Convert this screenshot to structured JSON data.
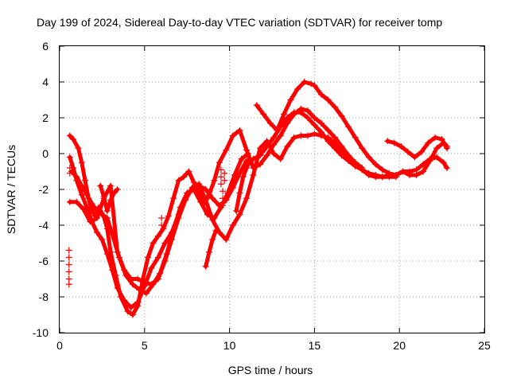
{
  "chart_data": {
    "type": "scatter",
    "title": "Day 199 of 2024, Sidereal Day-to-day VTEC variation (SDTVAR) for receiver tomp",
    "xlabel": "GPS time / hours",
    "ylabel": "SDTVAR / TECUs",
    "xlim": [
      0,
      25
    ],
    "ylim": [
      -10,
      6
    ],
    "xticks": [
      0,
      5,
      10,
      15,
      20,
      25
    ],
    "yticks": [
      -10,
      -8,
      -6,
      -4,
      -2,
      0,
      2,
      4,
      6
    ],
    "grid": true,
    "marker": "+",
    "color": "#ff0000",
    "series": [
      {
        "x": [
          0.6,
          0.8,
          1.1,
          1.3,
          1.5,
          1.7,
          1.9,
          2.1,
          2.3,
          2.6,
          2.8,
          3.0,
          3.3,
          3.6,
          4.0,
          4.3,
          4.6,
          4.9,
          5.2,
          5.5,
          5.8,
          6.1,
          6.4,
          6.7,
          7.0,
          7.3,
          7.6,
          7.9,
          8.2,
          8.5,
          8.8,
          9.1,
          9.4,
          9.8,
          10.2,
          10.6,
          11.0,
          11.4,
          11.8,
          12.2,
          12.6,
          13.0,
          13.4,
          13.8,
          14.2,
          14.6,
          15.0,
          15.4,
          15.8,
          16.2,
          16.6,
          17.0,
          17.4,
          17.8,
          18.2,
          18.6,
          19.0,
          19.4,
          19.8,
          20.2,
          20.6,
          21.0,
          21.4,
          21.8,
          22.2,
          22.6,
          22.8
        ],
        "y": [
          1.0,
          0.8,
          0.3,
          -0.5,
          -1.5,
          -2.5,
          -3.2,
          -3.5,
          -3.0,
          -3.5,
          -4.2,
          -5.5,
          -6.8,
          -8.0,
          -8.8,
          -9.0,
          -8.5,
          -7.0,
          -5.8,
          -5.0,
          -4.6,
          -4.2,
          -3.5,
          -2.5,
          -1.5,
          -1.3,
          -1.0,
          -1.6,
          -2.2,
          -2.8,
          -2.3,
          -1.5,
          -0.5,
          0.2,
          1.0,
          1.3,
          0.2,
          -0.8,
          -0.6,
          -0.1,
          0.5,
          1.0,
          1.7,
          2.2,
          2.5,
          2.4,
          2.0,
          1.7,
          1.3,
          0.9,
          0.4,
          -0.1,
          -0.5,
          -0.9,
          -1.2,
          -1.3,
          -1.3,
          -1.2,
          -1.2,
          -1.0,
          -1.0,
          -0.9,
          -0.6,
          -0.3,
          -0.2,
          -0.5,
          -0.8
        ]
      },
      {
        "x": [
          0.6,
          0.8,
          1.0,
          1.3,
          1.6,
          1.9,
          2.2,
          2.5,
          2.8,
          3.1,
          3.4,
          3.8,
          4.2,
          4.6,
          5.0,
          5.4,
          5.8,
          6.2,
          6.6,
          7.0,
          7.4,
          7.8,
          8.2,
          8.6,
          9.0,
          9.4,
          9.8,
          10.2,
          10.6,
          11.0,
          11.4,
          11.8,
          12.2,
          12.6,
          13.0,
          13.4,
          13.8,
          14.2,
          14.6,
          15.0,
          15.4,
          15.8,
          16.2,
          16.6,
          17.0,
          17.4,
          17.8,
          18.2,
          18.6,
          19.0,
          19.4,
          19.8
        ],
        "y": [
          -0.2,
          -0.8,
          -1.5,
          -2.3,
          -3.0,
          -3.8,
          -4.4,
          -4.8,
          -5.6,
          -6.5,
          -7.5,
          -8.2,
          -8.6,
          -8.3,
          -7.4,
          -6.4,
          -5.8,
          -5.0,
          -4.4,
          -3.4,
          -2.5,
          -2.0,
          -1.8,
          -2.0,
          -2.5,
          -2.9,
          -2.6,
          -1.9,
          -1.1,
          -0.4,
          -0.3,
          -0.1,
          0.4,
          0.9,
          1.5,
          2.0,
          2.3,
          2.3,
          2.0,
          1.6,
          1.2,
          0.7,
          0.3,
          -0.1,
          -0.4,
          -0.7,
          -0.9,
          -1.1,
          -1.2,
          -1.3,
          -1.3,
          -1.3
        ]
      },
      {
        "x": [
          0.6,
          1.0,
          1.4,
          1.8,
          2.2,
          2.6,
          3.0,
          3.4,
          3.8,
          4.2,
          4.6,
          5.0,
          5.4,
          5.8,
          6.2,
          6.6,
          7.0,
          7.4,
          7.8,
          8.2,
          8.6,
          9.0,
          9.4,
          9.8,
          10.2,
          10.6,
          11.0,
          11.4,
          11.8,
          12.2,
          12.6,
          13.0,
          13.4,
          13.8,
          14.2,
          14.6,
          15.0,
          15.4,
          15.8,
          16.2,
          16.6,
          17.0,
          17.4,
          17.8
        ],
        "y": [
          -2.7,
          -2.7,
          -3.1,
          -3.8,
          -3.6,
          -2.5,
          -1.8,
          -5.5,
          -6.5,
          -7.0,
          -7.0,
          -7.2,
          -7.3,
          -7.0,
          -6.0,
          -4.8,
          -3.6,
          -2.6,
          -1.9,
          -1.7,
          -2.6,
          -3.7,
          -4.4,
          -4.8,
          -4.0,
          -3.4,
          -2.5,
          -1.2,
          0.3,
          0.7,
          0.0,
          -0.3,
          0.4,
          0.9,
          1.0,
          1.0,
          1.1,
          1.0,
          0.9,
          0.6,
          0.2,
          -0.2,
          -0.5,
          -0.8
        ]
      },
      {
        "x": [
          0.7,
          1.0,
          1.3,
          1.6,
          1.9,
          2.2,
          2.5,
          2.8,
          3.1,
          3.5,
          3.9,
          4.3,
          4.7,
          5.1,
          5.5,
          5.9,
          6.3,
          6.7,
          7.1,
          7.5,
          7.9,
          8.3,
          8.7,
          9.1,
          9.5,
          9.9,
          10.3,
          10.7,
          11.1
        ],
        "y": [
          -1.0,
          -1.3,
          -1.8,
          -2.3,
          -2.8,
          -3.2,
          -3.4,
          -3.6,
          -4.5,
          -5.8,
          -6.8,
          -7.3,
          -7.6,
          -7.8,
          -7.3,
          -6.7,
          -5.6,
          -4.3,
          -3.0,
          -2.2,
          -2.0,
          -2.7,
          -3.4,
          -3.6,
          -3.0,
          -2.2,
          -1.2,
          -0.3,
          0.0
        ]
      },
      {
        "x": [
          11.6,
          12.0,
          12.4,
          12.8,
          13.2,
          13.6,
          14.0,
          14.4,
          14.8,
          15.0,
          15.4,
          15.8,
          16.2,
          16.6,
          17.0,
          17.4,
          17.8,
          18.2,
          18.6,
          19.0,
          19.4,
          19.8,
          20.2,
          20.6,
          21.0,
          21.4,
          21.8,
          22.2,
          22.6,
          22.8
        ],
        "y": [
          2.7,
          2.2,
          1.7,
          1.3,
          2.2,
          3.0,
          3.6,
          4.0,
          3.9,
          3.8,
          3.3,
          3.0,
          2.6,
          2.1,
          1.5,
          0.9,
          0.3,
          -0.2,
          -0.6,
          -0.9,
          -1.1,
          -1.2,
          -1.0,
          -1.2,
          -1.2,
          -1.0,
          -0.4,
          0.3,
          0.6,
          0.4
        ]
      },
      {
        "x": [
          19.3,
          19.7,
          20.1,
          20.5,
          20.9,
          21.3,
          21.7,
          22.1,
          22.5,
          22.8
        ],
        "y": [
          0.7,
          0.6,
          0.4,
          0.1,
          -0.2,
          0.1,
          0.6,
          0.9,
          0.8,
          0.3
        ]
      },
      {
        "x": [
          2.4,
          2.6,
          2.8,
          3.0,
          3.2,
          3.4
        ],
        "y": [
          -1.8,
          -2.4,
          -3.2,
          -2.6,
          -2.2,
          -2.0
        ]
      },
      {
        "x": [
          8.6,
          8.8,
          9.0,
          9.2
        ],
        "y": [
          -6.3,
          -5.5,
          -4.8,
          -4.3
        ]
      },
      {
        "x": [
          10.4,
          10.6,
          10.8,
          11.0,
          11.2
        ],
        "y": [
          -3.2,
          -2.2,
          -1.3,
          -0.8,
          -0.4
        ]
      }
    ],
    "scattered": [
      {
        "x": 0.55,
        "y": -5.4
      },
      {
        "x": 0.55,
        "y": -5.8
      },
      {
        "x": 0.55,
        "y": -6.2
      },
      {
        "x": 0.55,
        "y": -6.6
      },
      {
        "x": 0.55,
        "y": -7.0
      },
      {
        "x": 0.55,
        "y": -7.3
      },
      {
        "x": 0.6,
        "y": -0.8
      },
      {
        "x": 0.6,
        "y": -1.1
      },
      {
        "x": 9.5,
        "y": -0.9
      },
      {
        "x": 9.5,
        "y": -1.3
      },
      {
        "x": 9.5,
        "y": -1.7
      },
      {
        "x": 9.6,
        "y": -2.1
      },
      {
        "x": 9.6,
        "y": -2.5
      },
      {
        "x": 9.6,
        "y": -2.9
      },
      {
        "x": 9.7,
        "y": -1.1
      },
      {
        "x": 9.7,
        "y": -1.5
      },
      {
        "x": 6.0,
        "y": -4.0
      },
      {
        "x": 6.0,
        "y": -3.6
      }
    ]
  }
}
